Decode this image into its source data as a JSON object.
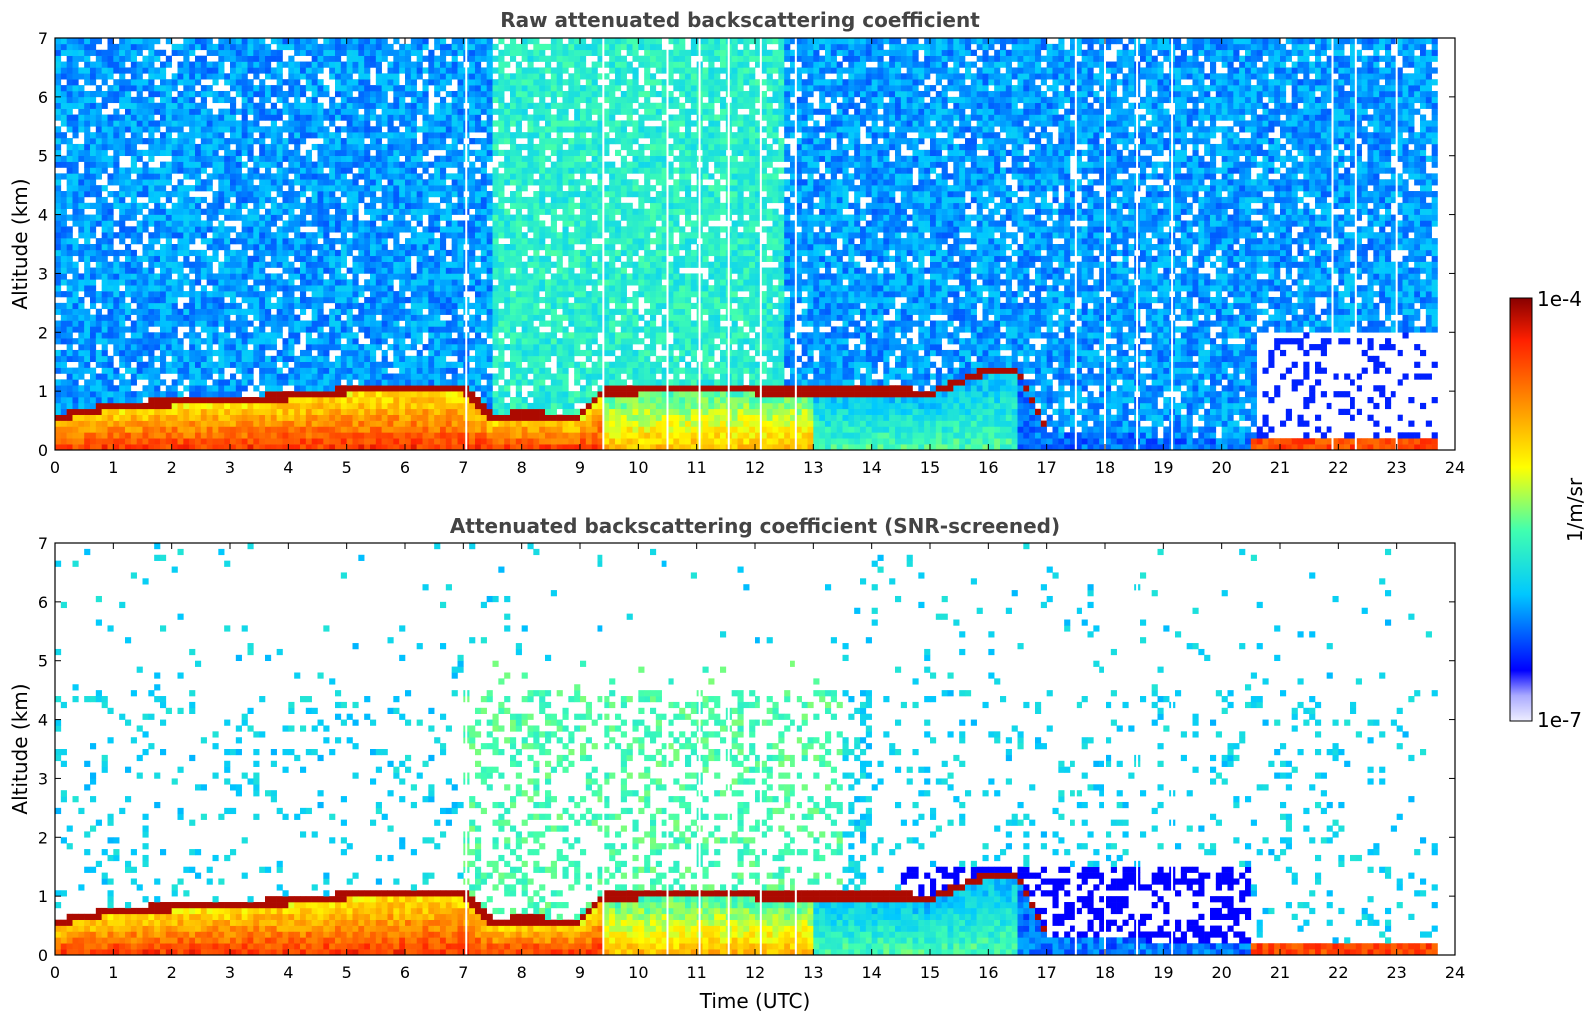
{
  "chart_data": [
    {
      "type": "heatmap",
      "title": "Raw attenuated backscattering coefficient",
      "xlabel": "",
      "ylabel": "Altitude (km)",
      "xlim": [
        0,
        24
      ],
      "ylim": [
        0,
        7
      ],
      "x_ticks": [
        "0",
        "1",
        "2",
        "3",
        "4",
        "5",
        "6",
        "7",
        "8",
        "9",
        "10",
        "11",
        "12",
        "13",
        "14",
        "15",
        "16",
        "17",
        "18",
        "19",
        "20",
        "21",
        "22",
        "23",
        "24"
      ],
      "y_ticks": [
        "0",
        "1",
        "2",
        "3",
        "4",
        "5",
        "6",
        "7"
      ],
      "features": {
        "boundary_layer_top_km": [
          [
            0,
            0.5
          ],
          [
            1,
            0.7
          ],
          [
            2,
            0.75
          ],
          [
            3,
            0.8
          ],
          [
            4,
            0.85
          ],
          [
            5,
            0.95
          ],
          [
            6,
            1.0
          ],
          [
            7,
            1.0
          ],
          [
            7.5,
            0.5
          ],
          [
            8,
            0.55
          ],
          [
            9,
            0.5
          ],
          [
            9.4,
            0.95
          ],
          [
            10,
            0.95
          ],
          [
            11,
            1.0
          ],
          [
            12,
            0.95
          ],
          [
            13,
            0.95
          ],
          [
            13.9,
            0.95
          ],
          [
            14.5,
            0.95
          ],
          [
            15,
            0.9
          ],
          [
            16,
            1.3
          ],
          [
            16.5,
            1.3
          ],
          [
            17,
            0.3
          ],
          [
            20.5,
            0.2
          ],
          [
            23.7,
            0.15
          ]
        ],
        "gap_times_h": [
          7.05,
          9.4,
          10.5,
          11.05,
          11.55,
          12.1,
          12.7,
          17.5,
          18.0,
          18.55,
          19.15,
          21.9,
          22.3,
          23.0
        ],
        "data_end_h": 23.7
      }
    },
    {
      "type": "heatmap",
      "title": "Attenuated backscattering coefficient (SNR-screened)",
      "xlabel": "Time (UTC)",
      "ylabel": "Altitude (km)",
      "xlim": [
        0,
        24
      ],
      "ylim": [
        0,
        7
      ],
      "x_ticks": [
        "0",
        "1",
        "2",
        "3",
        "4",
        "5",
        "6",
        "7",
        "8",
        "9",
        "10",
        "11",
        "12",
        "13",
        "14",
        "15",
        "16",
        "17",
        "18",
        "19",
        "20",
        "21",
        "22",
        "23",
        "24"
      ],
      "y_ticks": [
        "0",
        "1",
        "2",
        "3",
        "4",
        "5",
        "6",
        "7"
      ],
      "features": {
        "boundary_layer_top_km": [
          [
            0,
            0.5
          ],
          [
            1,
            0.7
          ],
          [
            2,
            0.75
          ],
          [
            3,
            0.8
          ],
          [
            4,
            0.85
          ],
          [
            5,
            0.95
          ],
          [
            6,
            1.0
          ],
          [
            7,
            1.0
          ],
          [
            7.5,
            0.5
          ],
          [
            8,
            0.55
          ],
          [
            9,
            0.5
          ],
          [
            9.4,
            0.95
          ],
          [
            10,
            0.95
          ],
          [
            11,
            1.0
          ],
          [
            12,
            0.95
          ],
          [
            13,
            0.95
          ],
          [
            13.9,
            0.95
          ],
          [
            14.5,
            0.95
          ],
          [
            15,
            0.9
          ],
          [
            16,
            1.3
          ],
          [
            16.5,
            1.3
          ],
          [
            17,
            0.3
          ],
          [
            20.5,
            0.2
          ],
          [
            23.7,
            0.15
          ]
        ],
        "gap_times_h": [
          7.05,
          9.4,
          10.5,
          11.05,
          11.55,
          12.1,
          12.7,
          17.5,
          18.0,
          18.55,
          19.15
        ],
        "data_end_h": 23.7
      }
    }
  ],
  "colorbar": {
    "label": "1/m/sr",
    "max_label": "1e-4",
    "min_label": "1e-7",
    "colormap": [
      "#eeeeff",
      "#aaaaff",
      "#0000ff",
      "#00c8ff",
      "#40ffb0",
      "#ffff00",
      "#ff9000",
      "#ff2000",
      "#880000"
    ]
  }
}
